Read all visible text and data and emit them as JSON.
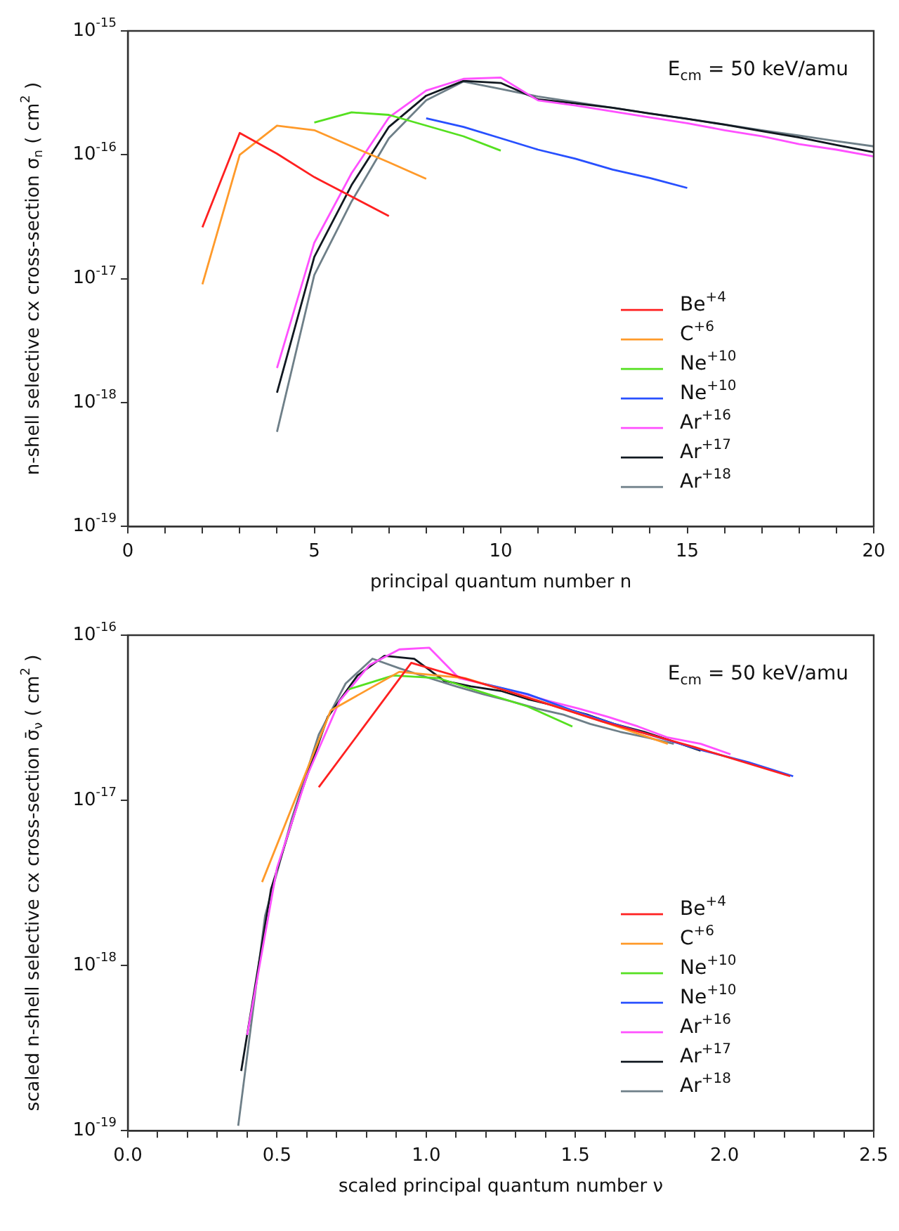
{
  "chart_data": [
    {
      "type": "line",
      "xlabel": "principal quantum number n",
      "ylabel": "n-shell selective cx cross-section σ$_{n}$ ( cm$^{2}$ )",
      "annotations": [
        "E$_{cm}$ = 50 keV/amu"
      ],
      "log": "y",
      "grid": false,
      "legend": "bottom right",
      "marker": "none",
      "line_style": "solid",
      "xlim": [
        0,
        20
      ],
      "ylim": [
        1e-19,
        1e-15
      ],
      "xticks": [
        0,
        {
          "value": 1,
          "label": null
        },
        {
          "value": 2,
          "label": null
        },
        {
          "value": 3,
          "label": null
        },
        {
          "value": 4,
          "label": null
        },
        5,
        {
          "value": 6,
          "label": null
        },
        {
          "value": 7,
          "label": null
        },
        {
          "value": 8,
          "label": null
        },
        {
          "value": 9,
          "label": null
        },
        10,
        {
          "value": 11,
          "label": null
        },
        {
          "value": 12,
          "label": null
        },
        {
          "value": 13,
          "label": null
        },
        {
          "value": 14,
          "label": null
        },
        15,
        {
          "value": 16,
          "label": null
        },
        {
          "value": 17,
          "label": null
        },
        {
          "value": 18,
          "label": null
        },
        {
          "value": 19,
          "label": null
        },
        20
      ],
      "yticks": [
        {
          "value": 1e-19,
          "label": "10$^{-19}$"
        },
        {
          "value": 1e-18,
          "label": "10$^{-18}$"
        },
        {
          "value": 1e-17,
          "label": "10$^{-17}$"
        },
        {
          "value": 1e-16,
          "label": "10$^{-16}$"
        },
        {
          "value": 1e-15,
          "label": "10$^{-15}$"
        }
      ],
      "series": [
        {
          "name": "Be$^{+4}$",
          "color": "#ff2020",
          "x": [
            2,
            3,
            4,
            5,
            6,
            7
          ],
          "values": [
            2.6e-17,
            1.5e-16,
            1.02e-16,
            6.6e-17,
            4.6e-17,
            3.2e-17
          ]
        },
        {
          "name": "C$^{+6}$",
          "color": "#ff9a2a",
          "x": [
            2,
            3,
            4,
            5,
            6,
            7,
            8
          ],
          "values": [
            9e-18,
            1e-16,
            1.72e-16,
            1.58e-16,
            1.17e-16,
            8.7e-17,
            6.4e-17
          ]
        },
        {
          "name": "Ne$^{+10}$",
          "color": "#55e020",
          "x": [
            5,
            6,
            7,
            8,
            9,
            10
          ],
          "values": [
            1.82e-16,
            2.2e-16,
            2.1e-16,
            1.72e-16,
            1.41e-16,
            1.08e-16
          ]
        },
        {
          "name": "Ne$^{+10}$",
          "color": "#2850ff",
          "x": [
            8,
            9,
            10,
            11,
            12,
            13,
            14,
            15
          ],
          "values": [
            1.97e-16,
            1.68e-16,
            1.36e-16,
            1.1e-16,
            9.3e-17,
            7.6e-17,
            6.5e-17,
            5.4e-17
          ]
        },
        {
          "name": "Ar$^{+16}$",
          "color": "#ff50ff",
          "x": [
            4,
            5,
            6,
            7,
            8,
            9,
            10,
            11,
            12,
            13,
            14,
            15,
            16,
            17,
            18,
            19,
            20
          ],
          "values": [
            1.9e-18,
            1.95e-17,
            7.1e-17,
            2e-16,
            3.3e-16,
            4.1e-16,
            4.2e-16,
            2.75e-16,
            2.5e-16,
            2.24e-16,
            2e-16,
            1.8e-16,
            1.58e-16,
            1.41e-16,
            1.22e-16,
            1.1e-16,
            9.7e-17
          ]
        },
        {
          "name": "Ar$^{+17}$",
          "color": "#111820",
          "x": [
            4,
            5,
            6,
            7,
            8,
            9,
            10,
            11,
            12,
            13,
            14,
            15,
            16,
            17,
            18,
            19,
            20
          ],
          "values": [
            1.2e-18,
            1.5e-17,
            5.7e-17,
            1.68e-16,
            3e-16,
            3.95e-16,
            3.8e-16,
            2.8e-16,
            2.6e-16,
            2.4e-16,
            2.15e-16,
            1.95e-16,
            1.75e-16,
            1.55e-16,
            1.38e-16,
            1.2e-16,
            1.05e-16
          ]
        },
        {
          "name": "Ar$^{+18}$",
          "color": "#6e7f88",
          "x": [
            4,
            5,
            6,
            7,
            8,
            9,
            10,
            11,
            12,
            13,
            14,
            15,
            16,
            17,
            18,
            19,
            20
          ],
          "values": [
            5.8e-19,
            1.07e-17,
            4.2e-17,
            1.36e-16,
            2.75e-16,
            3.9e-16,
            3.4e-16,
            2.95e-16,
            2.66e-16,
            2.4e-16,
            2.16e-16,
            1.95e-16,
            1.76e-16,
            1.58e-16,
            1.43e-16,
            1.29e-16,
            1.17e-16
          ]
        }
      ]
    },
    {
      "type": "line",
      "xlabel": "scaled principal quantum number ν",
      "ylabel": "scaled n-shell selective cx cross-section σ̄$_{ν}$ ( cm$^{2}$ )",
      "annotations": [
        "E$_{cm}$ = 50 keV/amu"
      ],
      "log": "y",
      "grid": false,
      "legend": "bottom right",
      "marker": "none",
      "line_style": "solid",
      "xlim": [
        0,
        2.5
      ],
      "ylim": [
        1e-19,
        1e-16
      ],
      "xticks": [
        {
          "value": 0,
          "label": "0.0"
        },
        {
          "value": 0.1,
          "label": null
        },
        {
          "value": 0.2,
          "label": null
        },
        {
          "value": 0.3,
          "label": null
        },
        {
          "value": 0.4,
          "label": null
        },
        0.5,
        {
          "value": 0.6,
          "label": null
        },
        {
          "value": 0.7,
          "label": null
        },
        {
          "value": 0.8,
          "label": null
        },
        {
          "value": 0.9,
          "label": null
        },
        {
          "value": 1,
          "label": "1.0"
        },
        {
          "value": 1.1,
          "label": null
        },
        {
          "value": 1.2,
          "label": null
        },
        {
          "value": 1.3,
          "label": null
        },
        {
          "value": 1.4,
          "label": null
        },
        1.5,
        {
          "value": 1.6,
          "label": null
        },
        {
          "value": 1.7,
          "label": null
        },
        {
          "value": 1.8,
          "label": null
        },
        {
          "value": 1.9,
          "label": null
        },
        {
          "value": 2,
          "label": "2.0"
        },
        {
          "value": 2.1,
          "label": null
        },
        {
          "value": 2.2,
          "label": null
        },
        {
          "value": 2.3,
          "label": null
        },
        {
          "value": 2.4,
          "label": null
        },
        2.5
      ],
      "yticks": [
        {
          "value": 1e-19,
          "label": "10$^{-19}$"
        },
        {
          "value": 1e-18,
          "label": "10$^{-18}$"
        },
        {
          "value": 1e-17,
          "label": "10$^{-17}$"
        },
        {
          "value": 1e-16,
          "label": "10$^{-16}$"
        }
      ],
      "series": [
        {
          "name": "Be$^{+4}$",
          "color": "#ff2020",
          "x": [
            0.64,
            0.95,
            1.27,
            1.59,
            1.9,
            2.22
          ],
          "values": [
            1.2e-17,
            6.8e-17,
            4.6e-17,
            3e-17,
            2.1e-17,
            1.4e-17
          ]
        },
        {
          "name": "C$^{+6}$",
          "color": "#ff9a2a",
          "x": [
            0.45,
            0.68,
            0.91,
            1.13,
            1.36,
            1.59,
            1.81
          ],
          "values": [
            3.2e-18,
            3.5e-17,
            6e-17,
            5.5e-17,
            4.1e-17,
            3e-17,
            2.2e-17
          ]
        },
        {
          "name": "Ne$^{+10}$",
          "color": "#55e020",
          "x": [
            0.74,
            0.89,
            1.04,
            1.19,
            1.34,
            1.49
          ],
          "values": [
            4.7e-17,
            5.7e-17,
            5.5e-17,
            4.5e-17,
            3.7e-17,
            2.8e-17
          ]
        },
        {
          "name": "Ne$^{+10}$",
          "color": "#2850ff",
          "x": [
            1.19,
            1.34,
            1.49,
            1.63,
            1.78,
            1.93,
            2.08,
            2.23
          ],
          "values": [
            5.1e-17,
            4.4e-17,
            3.5e-17,
            2.9e-17,
            2.4e-17,
            2e-17,
            1.7e-17,
            1.4e-17
          ]
        },
        {
          "name": "Ar$^{+16}$",
          "color": "#ff50ff",
          "x": [
            0.4,
            0.5,
            0.6,
            0.71,
            0.81,
            0.91,
            1.01,
            1.11,
            1.21,
            1.31,
            1.41,
            1.51,
            1.61,
            1.71,
            1.81,
            1.92,
            2.02
          ],
          "values": [
            3.8e-19,
            3.9e-18,
            1.4e-17,
            4e-17,
            6.6e-17,
            8.2e-17,
            8.4e-17,
            5.5e-17,
            5e-17,
            4.5e-17,
            4e-17,
            3.6e-17,
            3.2e-17,
            2.8e-17,
            2.4e-17,
            2.2e-17,
            1.9e-17
          ]
        },
        {
          "name": "Ar$^{+17}$",
          "color": "#111820",
          "x": [
            0.38,
            0.48,
            0.58,
            0.67,
            0.77,
            0.86,
            0.96,
            1.06,
            1.15,
            1.25,
            1.34,
            1.44,
            1.54,
            1.63,
            1.73,
            1.82,
            1.92
          ],
          "values": [
            2.3e-19,
            2.9e-18,
            1.1e-17,
            3.2e-17,
            5.7e-17,
            7.5e-17,
            7.2e-17,
            5.3e-17,
            4.9e-17,
            4.6e-17,
            4.1e-17,
            3.7e-17,
            3.3e-17,
            2.9e-17,
            2.6e-17,
            2.3e-17,
            2e-17
          ]
        },
        {
          "name": "Ar$^{+18}$",
          "color": "#6e7f88",
          "x": [
            0.37,
            0.46,
            0.55,
            0.64,
            0.73,
            0.82,
            0.91,
            1.01,
            1.1,
            1.19,
            1.28,
            1.37,
            1.46,
            1.55,
            1.65,
            1.74,
            1.83
          ],
          "values": [
            1.07e-19,
            2e-18,
            7.8e-18,
            2.5e-17,
            5.1e-17,
            7.2e-17,
            6.3e-17,
            5.5e-17,
            4.9e-17,
            4.4e-17,
            4e-17,
            3.6e-17,
            3.3e-17,
            2.9e-17,
            2.6e-17,
            2.4e-17,
            2.2e-17
          ]
        }
      ]
    }
  ]
}
